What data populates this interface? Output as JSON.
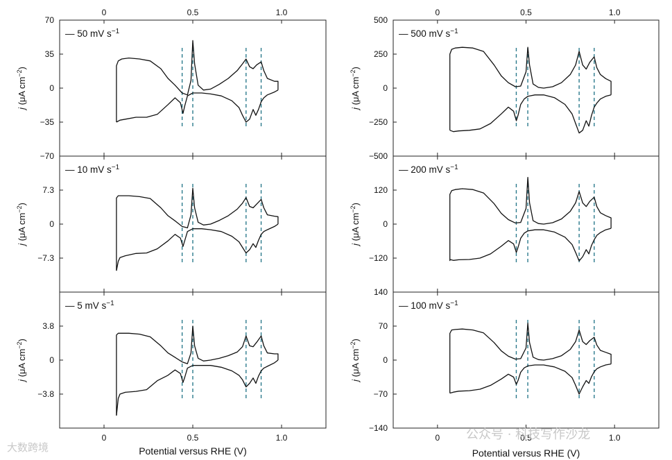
{
  "figure": {
    "xlabel_left": "Potential versus RHE (V)",
    "xlabel_right": "Potential versus RHE (V)",
    "x_ticks": [
      "0",
      "0.5",
      "1.0"
    ],
    "x_tick_values": [
      0,
      0.5,
      1.0
    ],
    "xlim": [
      -0.25,
      1.25
    ],
    "ylabel": "j (μA cm−2)",
    "ylabel_main": "j",
    "ylabel_unit": "(μA cm",
    "ylabel_sup": "−2",
    "ylabel_close": ")",
    "legend_prefix": "—",
    "colors": {
      "curve": "#111111",
      "reference_lines": "#2b7a8c",
      "frame": "#222222"
    }
  },
  "watermarks": {
    "bottom_left": "大数跨境",
    "bottom_right": "公众号 · 科技写作沙龙"
  },
  "chart_data": [
    {
      "type": "line",
      "column": "left",
      "row": 0,
      "legend": "50 mV s",
      "legend_sup": "−1",
      "ylim": [
        -70,
        70
      ],
      "y_ticks": [
        "70",
        "35",
        "0",
        "−35",
        "−70"
      ],
      "y_tick_values": [
        70,
        35,
        0,
        -35,
        -70
      ],
      "show_top_axis": true,
      "anodic_peaks_V": [
        0.5,
        0.8,
        0.885
      ],
      "cathodic_peaks_V": [
        0.445,
        0.8,
        0.855
      ],
      "reference_lines_V": [
        0.44,
        0.5,
        0.8,
        0.885
      ],
      "series": [
        {
          "name": "anodic",
          "x": [
            0.07,
            0.07,
            0.08,
            0.1,
            0.14,
            0.2,
            0.26,
            0.32,
            0.36,
            0.4,
            0.44,
            0.47,
            0.49,
            0.5,
            0.51,
            0.53,
            0.56,
            0.6,
            0.65,
            0.7,
            0.75,
            0.78,
            0.8,
            0.82,
            0.84,
            0.86,
            0.885,
            0.9,
            0.92,
            0.96,
            0.98,
            0.98
          ],
          "y": [
            -35,
            23,
            28,
            30,
            31,
            30,
            28,
            20,
            10,
            3,
            -5,
            -7,
            8,
            49,
            25,
            3,
            -2,
            -1,
            4,
            10,
            18,
            25,
            30,
            22,
            20,
            24,
            27,
            18,
            10,
            7,
            7,
            -2
          ]
        },
        {
          "name": "cathodic",
          "x": [
            0.98,
            0.96,
            0.92,
            0.9,
            0.885,
            0.87,
            0.855,
            0.84,
            0.82,
            0.8,
            0.78,
            0.76,
            0.72,
            0.66,
            0.6,
            0.55,
            0.5,
            0.47,
            0.455,
            0.445,
            0.43,
            0.4,
            0.36,
            0.3,
            0.24,
            0.18,
            0.12,
            0.09,
            0.07
          ],
          "y": [
            -2,
            -4,
            -7,
            -10,
            -14,
            -22,
            -28,
            -22,
            -32,
            -35,
            -28,
            -20,
            -13,
            -8,
            -6,
            -5,
            -5,
            -8,
            -18,
            -26,
            -15,
            -10,
            -17,
            -27,
            -30,
            -30,
            -32,
            -33,
            -35
          ]
        }
      ]
    },
    {
      "type": "line",
      "column": "left",
      "row": 1,
      "legend": "10 mV s",
      "legend_sup": "−1",
      "ylim": [
        -14.6,
        14.6
      ],
      "y_ticks": [
        "7.3",
        "0",
        "−7.3"
      ],
      "y_tick_values": [
        7.3,
        0,
        -7.3
      ],
      "show_top_axis": false,
      "anodic_peaks_V": [
        0.5,
        0.8,
        0.885
      ],
      "cathodic_peaks_V": [
        0.445,
        0.8,
        0.855
      ],
      "reference_lines_V": [
        0.44,
        0.5,
        0.8,
        0.885
      ],
      "series": [
        {
          "name": "anodic",
          "x": [
            0.07,
            0.07,
            0.08,
            0.1,
            0.14,
            0.2,
            0.26,
            0.32,
            0.36,
            0.4,
            0.44,
            0.47,
            0.49,
            0.5,
            0.51,
            0.53,
            0.56,
            0.6,
            0.65,
            0.7,
            0.75,
            0.78,
            0.8,
            0.82,
            0.84,
            0.86,
            0.885,
            0.9,
            0.92,
            0.96,
            0.98,
            0.98
          ],
          "y": [
            -10,
            5.6,
            6.1,
            6.1,
            6.1,
            5.9,
            5.5,
            3.5,
            1.8,
            0.7,
            -0.5,
            -0.8,
            2,
            7.7,
            3.5,
            0.4,
            -0.2,
            0,
            0.8,
            1.8,
            3.2,
            4.5,
            5.7,
            3.8,
            3.5,
            4.3,
            5.3,
            3.5,
            2,
            1.7,
            1.6,
            0
          ]
        },
        {
          "name": "cathodic",
          "x": [
            0.98,
            0.96,
            0.92,
            0.9,
            0.885,
            0.87,
            0.855,
            0.84,
            0.82,
            0.8,
            0.78,
            0.76,
            0.72,
            0.66,
            0.6,
            0.55,
            0.5,
            0.47,
            0.455,
            0.445,
            0.43,
            0.4,
            0.36,
            0.3,
            0.24,
            0.18,
            0.12,
            0.09,
            0.08,
            0.07
          ],
          "y": [
            0,
            -0.5,
            -1.2,
            -1.6,
            -2.2,
            -3.5,
            -5,
            -4.2,
            -5.5,
            -6.2,
            -5,
            -3.8,
            -2.6,
            -1.6,
            -1.2,
            -1,
            -1,
            -1.6,
            -3.5,
            -4.8,
            -3,
            -2.2,
            -3.6,
            -5.3,
            -6.2,
            -6.3,
            -6.8,
            -7.2,
            -8,
            -10
          ]
        }
      ]
    },
    {
      "type": "line",
      "column": "left",
      "row": 2,
      "legend": "5 mV s",
      "legend_sup": "−1",
      "ylim": [
        -7.6,
        7.6
      ],
      "y_ticks": [
        "3.8",
        "0",
        "−3.8"
      ],
      "y_tick_values": [
        3.8,
        0,
        -3.8
      ],
      "show_top_axis": false,
      "anodic_peaks_V": [
        0.5,
        0.8,
        0.885
      ],
      "cathodic_peaks_V": [
        0.445,
        0.8,
        0.855
      ],
      "reference_lines_V": [
        0.44,
        0.5,
        0.8,
        0.885
      ],
      "series": [
        {
          "name": "anodic",
          "x": [
            0.07,
            0.07,
            0.08,
            0.1,
            0.14,
            0.2,
            0.26,
            0.32,
            0.36,
            0.4,
            0.44,
            0.47,
            0.49,
            0.5,
            0.51,
            0.53,
            0.56,
            0.6,
            0.65,
            0.7,
            0.75,
            0.78,
            0.8,
            0.82,
            0.84,
            0.86,
            0.885,
            0.9,
            0.92,
            0.96,
            0.98,
            0.98
          ],
          "y": [
            -6.2,
            2.8,
            3.0,
            3.0,
            3.0,
            2.9,
            2.6,
            1.6,
            0.8,
            0.3,
            -0.2,
            -0.4,
            0.8,
            3.8,
            1.6,
            0.2,
            -0.1,
            0,
            0.2,
            0.5,
            0.9,
            1.5,
            2.7,
            1.6,
            1.5,
            2.0,
            2.7,
            1.6,
            0.8,
            0.7,
            0.7,
            0
          ]
        },
        {
          "name": "cathodic",
          "x": [
            0.98,
            0.96,
            0.92,
            0.9,
            0.885,
            0.87,
            0.855,
            0.84,
            0.82,
            0.8,
            0.78,
            0.76,
            0.72,
            0.66,
            0.6,
            0.55,
            0.5,
            0.47,
            0.455,
            0.445,
            0.43,
            0.4,
            0.36,
            0.3,
            0.24,
            0.18,
            0.12,
            0.09,
            0.08,
            0.07
          ],
          "y": [
            0,
            -0.3,
            -0.7,
            -0.9,
            -1.2,
            -1.8,
            -2.6,
            -2.0,
            -2.6,
            -3.0,
            -2.2,
            -1.7,
            -1.2,
            -0.8,
            -0.6,
            -0.6,
            -0.6,
            -0.9,
            -1.9,
            -2.5,
            -1.5,
            -1.1,
            -1.7,
            -2.3,
            -3.3,
            -3.5,
            -3.6,
            -3.8,
            -4.3,
            -6.2
          ]
        }
      ]
    },
    {
      "type": "line",
      "column": "right",
      "row": 0,
      "legend": "500 mV s",
      "legend_sup": "−1",
      "ylim": [
        -500,
        500
      ],
      "y_ticks": [
        "500",
        "250",
        "0",
        "−250",
        "−500"
      ],
      "y_tick_values": [
        500,
        250,
        0,
        -250,
        -500
      ],
      "show_top_axis": true,
      "anodic_peaks_V": [
        0.51,
        0.8,
        0.885
      ],
      "cathodic_peaks_V": [
        0.445,
        0.8,
        0.84
      ],
      "reference_lines_V": [
        0.445,
        0.51,
        0.8,
        0.885
      ],
      "series": [
        {
          "name": "anodic",
          "x": [
            0.07,
            0.07,
            0.08,
            0.1,
            0.14,
            0.2,
            0.26,
            0.32,
            0.36,
            0.4,
            0.44,
            0.47,
            0.5,
            0.51,
            0.52,
            0.54,
            0.57,
            0.6,
            0.65,
            0.7,
            0.75,
            0.78,
            0.8,
            0.82,
            0.84,
            0.86,
            0.885,
            0.9,
            0.92,
            0.95,
            0.98,
            0.98
          ],
          "y": [
            -310,
            250,
            285,
            295,
            300,
            295,
            270,
            170,
            90,
            40,
            10,
            15,
            120,
            300,
            170,
            30,
            5,
            0,
            10,
            40,
            100,
            170,
            270,
            170,
            140,
            190,
            230,
            150,
            100,
            70,
            50,
            -50
          ]
        },
        {
          "name": "cathodic",
          "x": [
            0.98,
            0.95,
            0.92,
            0.9,
            0.885,
            0.87,
            0.855,
            0.84,
            0.82,
            0.8,
            0.78,
            0.76,
            0.72,
            0.66,
            0.6,
            0.55,
            0.51,
            0.49,
            0.47,
            0.455,
            0.445,
            0.43,
            0.4,
            0.36,
            0.3,
            0.24,
            0.18,
            0.12,
            0.09,
            0.07
          ],
          "y": [
            -50,
            -60,
            -80,
            -110,
            -140,
            -200,
            -280,
            -240,
            -310,
            -330,
            -260,
            -190,
            -120,
            -70,
            -50,
            -50,
            -60,
            -80,
            -120,
            -200,
            -240,
            -170,
            -140,
            -190,
            -260,
            -300,
            -310,
            -315,
            -320,
            -310
          ]
        }
      ]
    },
    {
      "type": "line",
      "column": "right",
      "row": 1,
      "legend": "200 mV s",
      "legend_sup": "−1",
      "ylim": [
        -240,
        240
      ],
      "y_ticks": [
        "120",
        "0",
        "−120"
      ],
      "y_tick_values": [
        120,
        0,
        -120
      ],
      "show_top_axis": false,
      "anodic_peaks_V": [
        0.51,
        0.8,
        0.885
      ],
      "cathodic_peaks_V": [
        0.445,
        0.8,
        0.84
      ],
      "reference_lines_V": [
        0.445,
        0.51,
        0.8,
        0.885
      ],
      "series": [
        {
          "name": "anodic",
          "x": [
            0.07,
            0.07,
            0.08,
            0.1,
            0.14,
            0.2,
            0.26,
            0.32,
            0.36,
            0.4,
            0.44,
            0.47,
            0.5,
            0.51,
            0.52,
            0.54,
            0.57,
            0.6,
            0.65,
            0.7,
            0.75,
            0.78,
            0.8,
            0.82,
            0.84,
            0.86,
            0.885,
            0.9,
            0.92,
            0.95,
            0.98,
            0.98
          ],
          "y": [
            -130,
            105,
            118,
            122,
            125,
            122,
            110,
            72,
            38,
            16,
            4,
            6,
            55,
            165,
            75,
            12,
            2,
            0,
            5,
            18,
            45,
            75,
            115,
            75,
            62,
            80,
            95,
            62,
            40,
            30,
            22,
            -15
          ]
        },
        {
          "name": "cathodic",
          "x": [
            0.98,
            0.95,
            0.92,
            0.9,
            0.885,
            0.87,
            0.855,
            0.84,
            0.82,
            0.8,
            0.78,
            0.76,
            0.72,
            0.66,
            0.6,
            0.55,
            0.51,
            0.49,
            0.47,
            0.455,
            0.445,
            0.43,
            0.4,
            0.36,
            0.3,
            0.24,
            0.18,
            0.12,
            0.09,
            0.07
          ],
          "y": [
            -15,
            -20,
            -30,
            -40,
            -55,
            -75,
            -105,
            -90,
            -115,
            -130,
            -100,
            -72,
            -46,
            -28,
            -20,
            -20,
            -24,
            -32,
            -50,
            -82,
            -100,
            -70,
            -58,
            -78,
            -105,
            -120,
            -125,
            -126,
            -128,
            -125
          ]
        }
      ]
    },
    {
      "type": "line",
      "column": "right",
      "row": 2,
      "legend": "100 mV s",
      "legend_sup": "−1",
      "ylim": [
        -140,
        140
      ],
      "y_ticks": [
        "140",
        "70",
        "0",
        "−70",
        "−140"
      ],
      "y_tick_values": [
        140,
        70,
        0,
        -70,
        -140
      ],
      "show_top_axis": false,
      "anodic_peaks_V": [
        0.51,
        0.8,
        0.885
      ],
      "cathodic_peaks_V": [
        0.445,
        0.8,
        0.84
      ],
      "reference_lines_V": [
        0.445,
        0.51,
        0.8,
        0.885
      ],
      "series": [
        {
          "name": "anodic",
          "x": [
            0.07,
            0.07,
            0.08,
            0.1,
            0.14,
            0.2,
            0.26,
            0.32,
            0.36,
            0.4,
            0.44,
            0.47,
            0.5,
            0.51,
            0.52,
            0.54,
            0.57,
            0.6,
            0.65,
            0.7,
            0.75,
            0.78,
            0.8,
            0.82,
            0.84,
            0.86,
            0.885,
            0.9,
            0.92,
            0.95,
            0.98,
            0.98
          ],
          "y": [
            -68,
            55,
            62,
            63,
            64,
            62,
            56,
            36,
            19,
            8,
            2,
            3,
            25,
            76,
            36,
            6,
            1,
            0,
            3,
            9,
            22,
            38,
            62,
            38,
            32,
            40,
            47,
            31,
            20,
            16,
            12,
            -8
          ]
        },
        {
          "name": "cathodic",
          "x": [
            0.98,
            0.95,
            0.92,
            0.9,
            0.885,
            0.87,
            0.855,
            0.84,
            0.82,
            0.8,
            0.78,
            0.76,
            0.72,
            0.66,
            0.6,
            0.55,
            0.51,
            0.49,
            0.47,
            0.455,
            0.445,
            0.43,
            0.4,
            0.36,
            0.3,
            0.24,
            0.18,
            0.12,
            0.09,
            0.07
          ],
          "y": [
            -8,
            -10,
            -14,
            -18,
            -24,
            -34,
            -48,
            -42,
            -55,
            -70,
            -52,
            -36,
            -23,
            -14,
            -10,
            -10,
            -12,
            -16,
            -25,
            -42,
            -50,
            -35,
            -29,
            -39,
            -52,
            -60,
            -63,
            -64,
            -66,
            -68
          ]
        }
      ]
    }
  ]
}
